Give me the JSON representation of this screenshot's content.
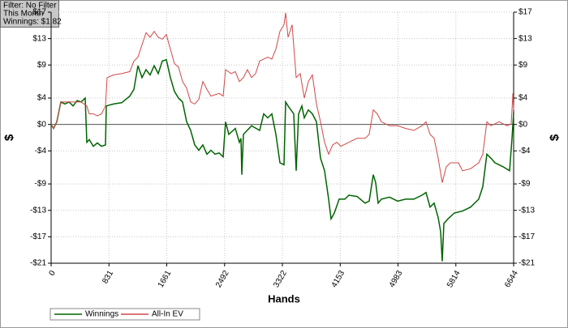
{
  "chart_data": {
    "type": "line",
    "annotations": [
      "Filter: No Filter",
      "This Month",
      "Winnings: $1.82"
    ],
    "xlabel": "Hands",
    "ylabel": "$",
    "xlim": [
      0,
      6644
    ],
    "xticks": [
      0,
      831,
      1661,
      2492,
      3322,
      4153,
      4983,
      5814,
      6644
    ],
    "ylim": [
      -21,
      17
    ],
    "yticks": [
      {
        "value": 17,
        "label": "$17"
      },
      {
        "value": 13,
        "label": "$13"
      },
      {
        "value": 9,
        "label": "$9"
      },
      {
        "value": 4,
        "label": "$4"
      },
      {
        "value": 0,
        "label": "$0"
      },
      {
        "value": -4,
        "label": "-$4"
      },
      {
        "value": -9,
        "label": "-$9"
      },
      {
        "value": -13,
        "label": "-$13"
      },
      {
        "value": -17,
        "label": "-$17"
      },
      {
        "value": -21,
        "label": "-$21"
      }
    ],
    "grid": true,
    "legend": "bottom-left",
    "series": [
      {
        "name": "Winnings",
        "color": "#006400",
        "x": [
          0,
          35,
          82,
          140,
          198,
          256,
          315,
          373,
          431,
          490,
          513,
          548,
          606,
          664,
          723,
          781,
          793,
          898,
          1014,
          1131,
          1189,
          1247,
          1305,
          1364,
          1422,
          1480,
          1539,
          1597,
          1655,
          1713,
          1772,
          1830,
          1888,
          1947,
          2005,
          2063,
          2121,
          2180,
          2238,
          2296,
          2354,
          2413,
          2471,
          2506,
          2553,
          2646,
          2704,
          2727,
          2739,
          2762,
          2879,
          2996,
          3054,
          3112,
          3170,
          3229,
          3287,
          3345,
          3369,
          3404,
          3485,
          3520,
          3555,
          3602,
          3637,
          3695,
          3753,
          3812,
          3870,
          3928,
          3986,
          4021,
          4068,
          4138,
          4219,
          4278,
          4394,
          4511,
          4569,
          4627,
          4662,
          4697,
          4744,
          4861,
          4977,
          5094,
          5210,
          5327,
          5385,
          5443,
          5502,
          5560,
          5595,
          5618,
          5642,
          5700,
          5793,
          5910,
          6026,
          6143,
          6201,
          6259,
          6318,
          6376,
          6492,
          6586,
          6621,
          6644
        ],
        "values": [
          0,
          -0.6,
          0.4,
          3.4,
          3.1,
          3.4,
          2.8,
          3.6,
          3.4,
          4.0,
          -2.7,
          -2.3,
          -3.3,
          -2.8,
          -3.3,
          -3.1,
          2.8,
          3.1,
          3.3,
          4.3,
          5.3,
          8.9,
          7.1,
          8.3,
          7.5,
          8.9,
          7.7,
          9.6,
          9.8,
          7.1,
          5.0,
          4.0,
          3.4,
          0.4,
          -0.9,
          -3.1,
          -3.9,
          -3.1,
          -4.5,
          -3.9,
          -4.5,
          -4.3,
          -4.9,
          0.4,
          -1.5,
          -0.6,
          -2.7,
          -2.1,
          -7.6,
          -1.5,
          -0.2,
          -0.9,
          1.6,
          1.0,
          1.6,
          -1.5,
          -5.8,
          -6.1,
          3.4,
          2.8,
          1.6,
          -7.0,
          1.6,
          2.8,
          1.0,
          2.2,
          1.6,
          0.4,
          -5.1,
          -7.0,
          -11.3,
          -14.3,
          -13.4,
          -11.3,
          -11.3,
          -10.7,
          -10.9,
          -11.9,
          -11.6,
          -7.6,
          -8.8,
          -11.9,
          -11.3,
          -11.0,
          -11.6,
          -11.3,
          -11.3,
          -10.7,
          -10.3,
          -12.5,
          -11.9,
          -14.1,
          -16.2,
          -20.7,
          -15.0,
          -14.3,
          -13.4,
          -13.1,
          -12.5,
          -11.3,
          -9.4,
          -4.5,
          -5.1,
          -5.8,
          -6.4,
          -7.0,
          -2.1,
          1.8
        ]
      },
      {
        "name": "All-In EV",
        "color": "#d04848",
        "x": [
          0,
          35,
          82,
          140,
          256,
          431,
          513,
          548,
          606,
          664,
          723,
          781,
          804,
          898,
          1014,
          1131,
          1189,
          1247,
          1364,
          1422,
          1480,
          1539,
          1597,
          1655,
          1713,
          1772,
          1830,
          1888,
          1947,
          2005,
          2063,
          2121,
          2180,
          2238,
          2296,
          2413,
          2471,
          2506,
          2588,
          2646,
          2704,
          2762,
          2821,
          2879,
          2937,
          2996,
          3054,
          3112,
          3170,
          3229,
          3287,
          3345,
          3369,
          3404,
          3462,
          3520,
          3578,
          3637,
          3695,
          3753,
          3812,
          3870,
          3928,
          3986,
          4045,
          4103,
          4161,
          4278,
          4394,
          4511,
          4569,
          4627,
          4685,
          4744,
          4861,
          4977,
          5094,
          5210,
          5327,
          5385,
          5443,
          5502,
          5560,
          5618,
          5677,
          5735,
          5851,
          5910,
          6026,
          6143,
          6201,
          6259,
          6318,
          6434,
          6551,
          6609,
          6633,
          6644
        ],
        "values": [
          0,
          -0.6,
          0.4,
          3.4,
          3.4,
          3.4,
          2.8,
          1.6,
          1.6,
          1.3,
          1.6,
          2.8,
          7.1,
          7.5,
          7.7,
          8.0,
          9.6,
          10.2,
          13.9,
          13.2,
          14.1,
          13.2,
          12.9,
          13.6,
          11.4,
          9.2,
          8.7,
          6.5,
          5.5,
          3.4,
          3.1,
          3.8,
          6.5,
          5.3,
          4.3,
          4.7,
          4.3,
          8.3,
          7.7,
          8.0,
          6.5,
          7.1,
          8.3,
          7.1,
          7.7,
          9.6,
          9.9,
          10.2,
          9.9,
          11.4,
          14.1,
          15.1,
          16.9,
          13.2,
          15.1,
          7.1,
          7.7,
          4.0,
          6.5,
          7.5,
          3.1,
          0.4,
          -2.7,
          -4.5,
          -3.1,
          -2.7,
          -3.3,
          -2.7,
          -2.1,
          -2.1,
          -1.5,
          2.2,
          1.6,
          0.4,
          -0.2,
          -0.2,
          -0.6,
          -0.9,
          -0.2,
          0.4,
          -1.5,
          -2.1,
          -5.1,
          -8.8,
          -6.4,
          -5.8,
          -5.8,
          -7.0,
          -6.7,
          -5.8,
          -4.5,
          0.4,
          -0.2,
          0.4,
          -0.2,
          0.1,
          4.7,
          2.2
        ]
      }
    ]
  }
}
